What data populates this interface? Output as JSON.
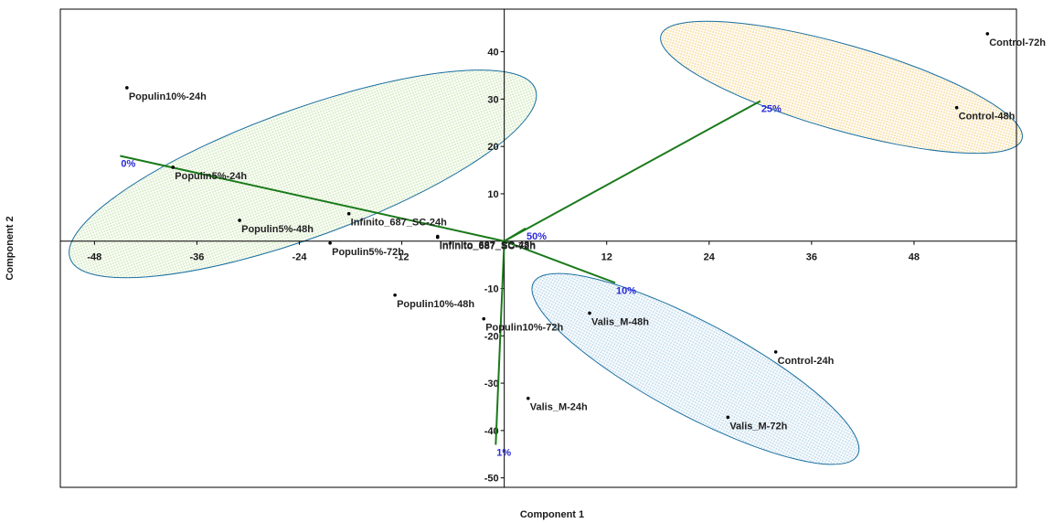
{
  "chart_data": {
    "type": "scatter",
    "title": "",
    "xlabel": "Component 1",
    "ylabel": "Component 2",
    "xlim": [
      -52,
      60
    ],
    "ylim": [
      -52,
      49
    ],
    "x_ticks": [
      -48,
      -36,
      -24,
      -12,
      12,
      24,
      36,
      48
    ],
    "y_ticks": [
      40,
      30,
      20,
      10,
      -10,
      -20,
      -30,
      -40,
      -50
    ],
    "grid": false,
    "legend": "none",
    "colors": {
      "frame": "#000000",
      "point": "#000000",
      "vector": "#1a7a1a",
      "vector_label": "#2a2ad8",
      "group_edge": "#1a6fa0",
      "group_green_fill": "#d9ecc8",
      "group_orange_fill": "#f8e2b0",
      "group_blue_fill": "#c9e0ef"
    },
    "points": [
      {
        "label": "Control-72h",
        "x": 56.6,
        "y": 43.8
      },
      {
        "label": "Control-48h",
        "x": 53.0,
        "y": 28.2
      },
      {
        "label": "Control-24h",
        "x": 31.8,
        "y": -23.4
      },
      {
        "label": "Populin10%-24h",
        "x": -44.2,
        "y": 32.4
      },
      {
        "label": "Populin5%-24h",
        "x": -38.8,
        "y": 15.6
      },
      {
        "label": "Populin5%-48h",
        "x": -31.0,
        "y": 4.4
      },
      {
        "label": "Infinito_687_SC-24h",
        "x": -18.2,
        "y": 5.8
      },
      {
        "label": "Infinito_687_SC-48h",
        "x": -7.8,
        "y": 1.0
      },
      {
        "label": "Infinito_687_SC-72h",
        "x": -7.8,
        "y": 0.8
      },
      {
        "label": "Populin5%-72h",
        "x": -20.4,
        "y": -0.4
      },
      {
        "label": "Populin10%-48h",
        "x": -12.8,
        "y": -11.4
      },
      {
        "label": "Populin10%-72h",
        "x": -2.4,
        "y": -16.4
      },
      {
        "label": "Valis_M-48h",
        "x": 10.0,
        "y": -15.2
      },
      {
        "label": "Valis_M-24h",
        "x": 2.8,
        "y": -33.2
      },
      {
        "label": "Valis_M-72h",
        "x": 26.2,
        "y": -37.2
      }
    ],
    "vectors": [
      {
        "label": "0%",
        "x": -45.0,
        "y": 18.0
      },
      {
        "label": "25%",
        "x": 30.0,
        "y": 29.6
      },
      {
        "label": "50%",
        "x": 2.5,
        "y": 2.7
      },
      {
        "label": "10%",
        "x": 13.0,
        "y": -8.8
      },
      {
        "label": "1%",
        "x": -1.0,
        "y": -43.0
      }
    ],
    "groups": [
      {
        "cx": -23.6,
        "cy": 14.2,
        "rx": 29,
        "ry": 13.5,
        "angle": -20,
        "fill": "green"
      },
      {
        "cx": 39.5,
        "cy": 32.5,
        "rx": 22,
        "ry": 9,
        "angle": 16,
        "fill": "orange"
      },
      {
        "cx": 22.4,
        "cy": -27.0,
        "rx": 21.5,
        "ry": 9.8,
        "angle": 28,
        "fill": "blue"
      }
    ]
  }
}
